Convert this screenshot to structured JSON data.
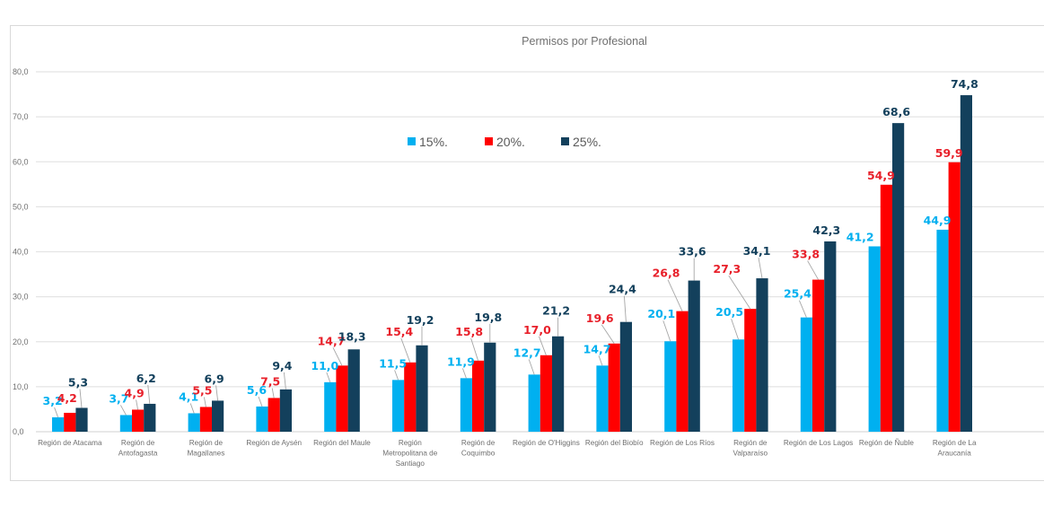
{
  "chart_data": {
    "type": "bar",
    "title": "Permisos por Profesional",
    "xlabel": "",
    "ylabel": "",
    "ylim": [
      0,
      80
    ],
    "yticks": [
      "0,0",
      "10,0",
      "20,0",
      "30,0",
      "40,0",
      "50,0",
      "60,0",
      "70,0",
      "80,0"
    ],
    "ytick_values": [
      0,
      10,
      20,
      30,
      40,
      50,
      60,
      70,
      80
    ],
    "grid": true,
    "legend_position": "top-center-inside",
    "categories": [
      [
        "Región de Atacama"
      ],
      [
        "Región de",
        "Antofagasta"
      ],
      [
        "Región de",
        "Magallanes"
      ],
      [
        "Región de Aysén"
      ],
      [
        "Región del Maule"
      ],
      [
        "Región",
        "Metropolitana de",
        "Santiago"
      ],
      [
        "Región de",
        "Coquimbo"
      ],
      [
        "Región de O'Higgins"
      ],
      [
        "Región del Biobío"
      ],
      [
        "Región de Los Ríos"
      ],
      [
        "Región de",
        "Valparaíso"
      ],
      [
        "Región de Los Lagos"
      ],
      [
        "Región de Ñuble"
      ],
      [
        "Región de La",
        "Araucanía"
      ]
    ],
    "series": [
      {
        "name": "15%.",
        "color": "#00b0f0",
        "values": [
          3.2,
          3.7,
          4.1,
          5.6,
          11.0,
          11.5,
          11.9,
          12.7,
          14.7,
          20.1,
          20.5,
          25.4,
          41.2,
          44.9
        ],
        "labels": [
          "3,2",
          "3,7",
          "4,1",
          "5,6",
          "11,0",
          "11,5",
          "11,9",
          "12,7",
          "14,7",
          "20,1",
          "20,5",
          "25,4",
          "41,2",
          "44,9"
        ]
      },
      {
        "name": "20%.",
        "color": "#ff0000",
        "label_color": "#e8202a",
        "values": [
          4.2,
          4.9,
          5.5,
          7.5,
          14.7,
          15.4,
          15.8,
          17.0,
          19.6,
          26.8,
          27.3,
          33.8,
          54.9,
          59.9
        ],
        "labels": [
          "4,2",
          "4,9",
          "5,5",
          "7,5",
          "14,7",
          "15,4",
          "15,8",
          "17,0",
          "19,6",
          "26,8",
          "27,3",
          "33,8",
          "54,9",
          "59,9"
        ]
      },
      {
        "name": "25%.",
        "color": "#13405c",
        "values": [
          5.3,
          6.2,
          6.9,
          9.4,
          18.3,
          19.2,
          19.8,
          21.2,
          24.4,
          33.6,
          34.1,
          42.3,
          68.6,
          74.8
        ],
        "labels": [
          "5,3",
          "6,2",
          "6,9",
          "9,4",
          "18,3",
          "19,2",
          "19,8",
          "21,2",
          "24,4",
          "33,6",
          "34,1",
          "42,3",
          "68,6",
          "74,8"
        ]
      }
    ]
  }
}
